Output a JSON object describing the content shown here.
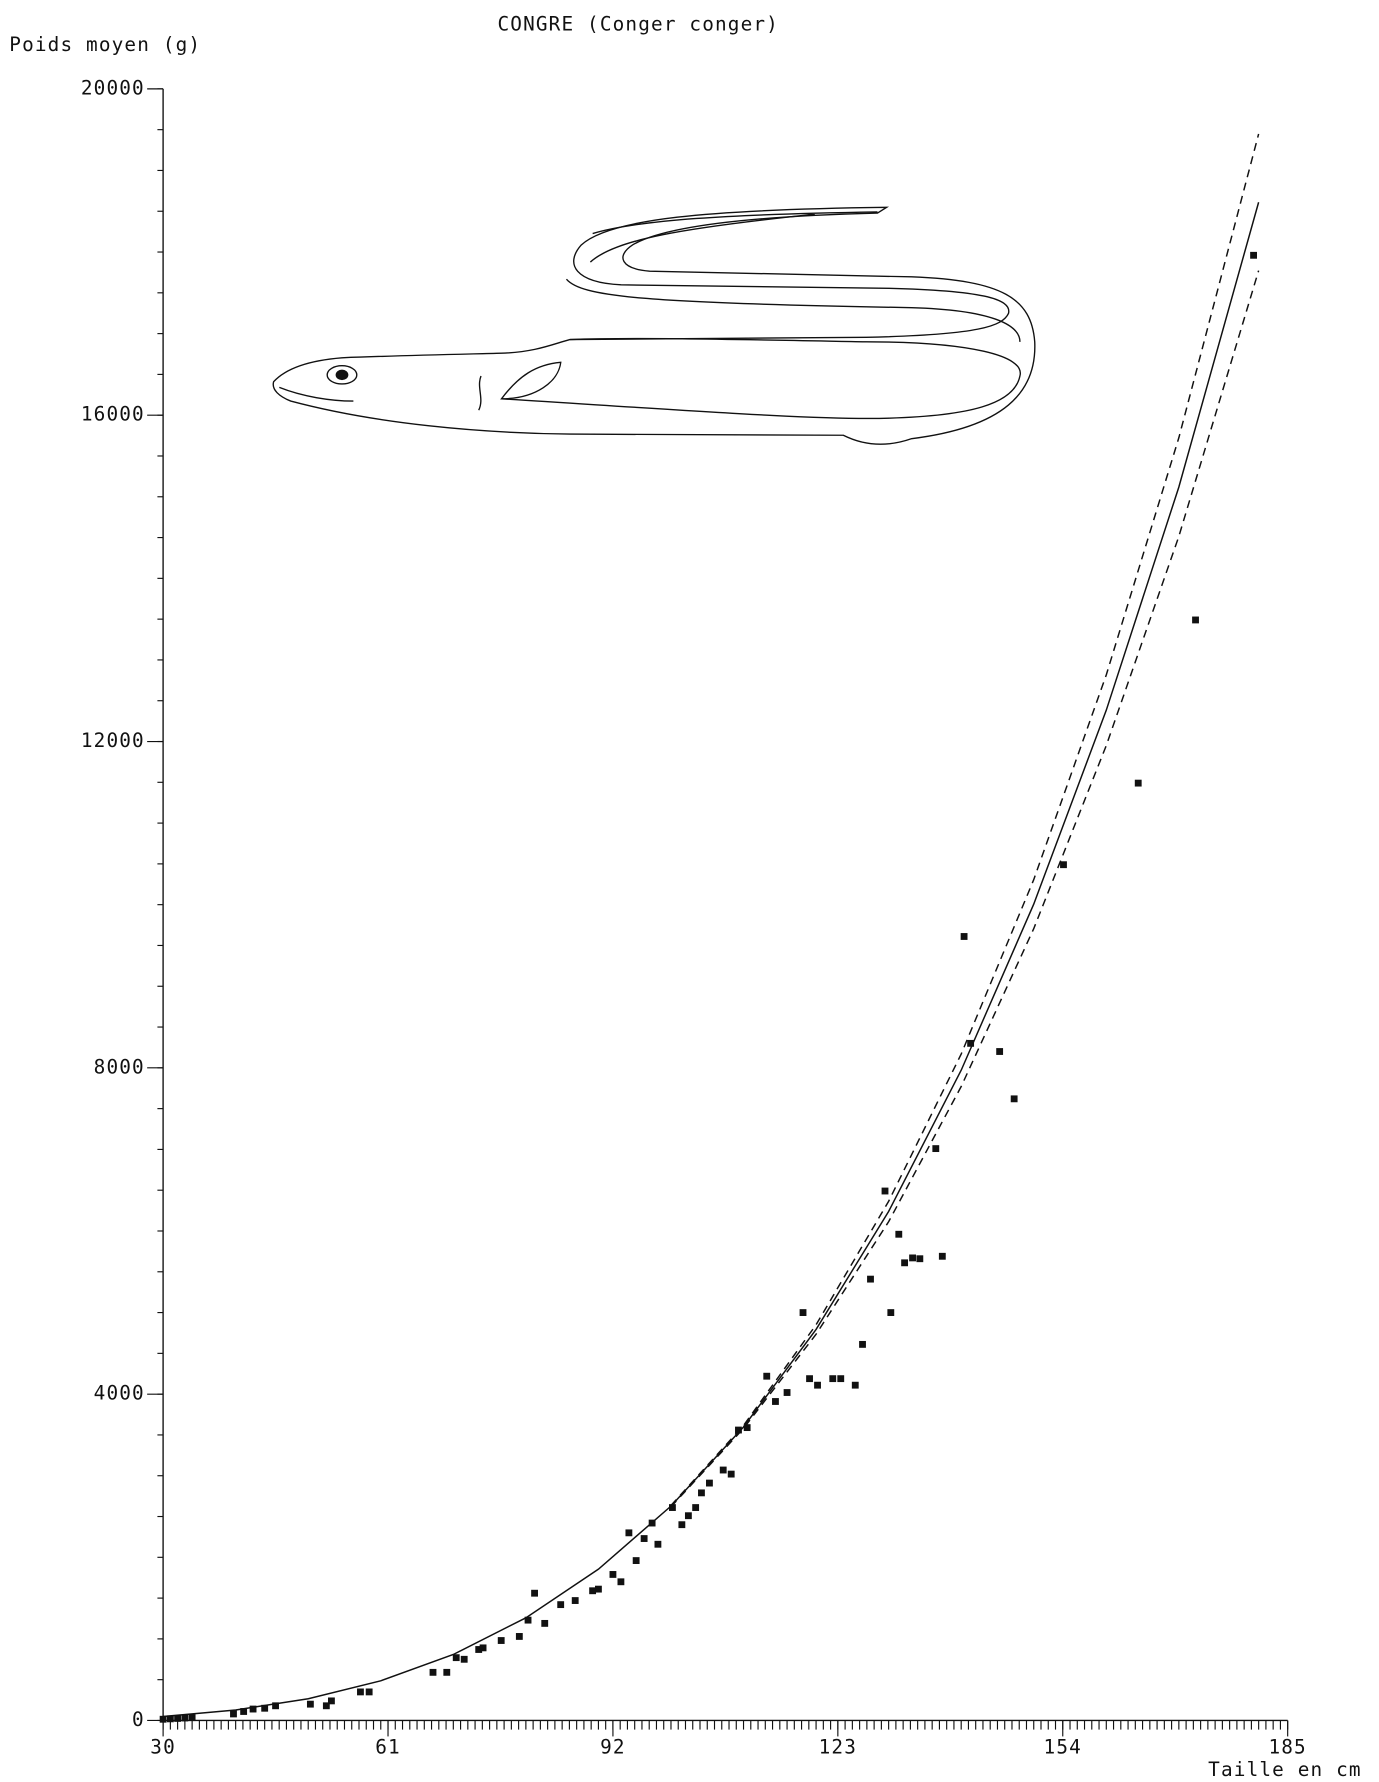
{
  "chart_data": {
    "type": "scatter",
    "title": "CONGRE (Conger conger)",
    "y_label": "Poids moyen (g)",
    "x_label": "Taille en cm",
    "xlim": [
      30,
      185
    ],
    "ylim": [
      0,
      20000
    ],
    "xticks": [
      30,
      61,
      92,
      123,
      154,
      185
    ],
    "yticks": [
      0,
      4000,
      8000,
      12000,
      16000,
      20000
    ],
    "xminorticks": [
      30,
      31,
      32,
      33,
      34,
      35,
      36,
      37,
      38,
      39,
      40,
      41,
      42,
      43,
      44,
      45,
      46,
      47,
      48,
      49,
      50,
      51,
      52,
      53,
      54,
      55,
      56,
      57,
      58,
      59,
      60,
      61,
      62,
      63,
      64,
      65,
      66,
      67,
      68,
      69,
      70,
      71,
      72,
      73,
      74,
      75,
      76,
      77,
      78,
      79,
      80,
      81,
      82,
      83,
      84,
      85,
      86,
      87,
      88,
      89,
      90,
      91,
      92,
      93,
      94,
      95,
      96,
      97,
      98,
      99,
      100,
      101,
      102,
      103,
      104,
      105,
      106,
      107,
      108,
      109,
      110,
      111,
      112,
      113,
      114,
      115,
      116,
      117,
      118,
      119,
      120,
      121,
      122,
      123,
      124,
      125,
      126,
      127,
      128,
      129,
      130,
      131,
      132,
      133,
      134,
      135,
      136,
      137,
      138,
      139,
      140,
      141,
      142,
      143,
      144,
      145,
      146,
      147,
      148,
      149,
      150,
      151,
      152,
      153,
      154,
      155,
      156,
      157,
      158,
      159,
      160,
      161,
      162,
      163,
      164,
      165,
      166,
      167,
      168,
      169,
      170,
      171,
      172,
      173,
      174,
      175,
      176,
      177,
      178,
      179,
      180,
      181,
      182,
      183,
      184,
      185
    ],
    "yminorticks": [
      0,
      500,
      1000,
      1500,
      2000,
      2500,
      3000,
      3500,
      4000,
      4500,
      5000,
      5500,
      6000,
      6500,
      7000,
      7500,
      8000,
      8500,
      9000,
      9500,
      10000,
      10500,
      11000,
      11500,
      12000,
      12500,
      13000,
      13500,
      14000,
      14500,
      15000,
      15500,
      16000,
      16500,
      17000,
      17500,
      18000,
      18500,
      19000,
      19500,
      20000
    ],
    "color": "#111111",
    "series": [
      {
        "kind": "points",
        "x": [
          30,
          31,
          32,
          33,
          34,
          39.7,
          41.1,
          42.4,
          44.0,
          45.5,
          50.3,
          52.5,
          53.2,
          57.2,
          58.4,
          67.2,
          69.1,
          70.4,
          71.5,
          73.5,
          74.1,
          76.6,
          79.1,
          80.3,
          81.2,
          82.6,
          84.8,
          86.8,
          89.2,
          90.0,
          92.0,
          93.1,
          94.2,
          95.2,
          96.3,
          97.4,
          98.2,
          100.2,
          101.5,
          102.4,
          103.4,
          104.2,
          105.3,
          107.2,
          108.3,
          109.3,
          110.5,
          113.2,
          114.4,
          116.0,
          118.2,
          119.1,
          120.2,
          122.3,
          123.4,
          125.4,
          126.4,
          127.5,
          129.5,
          130.3,
          131.4,
          132.2,
          133.3,
          134.3,
          136.5,
          137.4,
          140.4,
          141.3,
          145.3,
          147.3,
          154.1,
          164.4,
          172.3,
          180.3
        ],
        "values": [
          15,
          20,
          25,
          30,
          35,
          80,
          110,
          140,
          150,
          180,
          200,
          180,
          240,
          350,
          350,
          590,
          590,
          770,
          750,
          870,
          890,
          980,
          1030,
          1230,
          1560,
          1190,
          1420,
          1470,
          1590,
          1610,
          1790,
          1700,
          2300,
          1960,
          2230,
          2420,
          2160,
          2610,
          2400,
          2510,
          2610,
          2790,
          2910,
          3070,
          3020,
          3560,
          3590,
          4220,
          3910,
          4020,
          5000,
          4190,
          4110,
          4190,
          4190,
          4110,
          4610,
          5410,
          6490,
          5000,
          5960,
          5610,
          5670,
          5660,
          7010,
          5690,
          9610,
          8300,
          8200,
          7620,
          10490,
          11490,
          13490,
          17960
        ]
      },
      {
        "kind": "solid",
        "x": [
          30,
          40,
          50,
          60,
          70,
          80,
          90,
          100,
          110,
          120,
          130,
          140,
          150,
          160,
          170,
          181
        ],
        "values": [
          49,
          128,
          267,
          486,
          809,
          1258,
          1855,
          2627,
          3598,
          4793,
          6240,
          7972,
          10006,
          12384,
          15120,
          18610
        ]
      },
      {
        "kind": "dashed",
        "x": [
          100,
          110,
          120,
          130,
          140,
          150,
          160,
          170,
          181
        ],
        "values": [
          2635,
          3616,
          4851,
          6365,
          8171,
          10306,
          12817,
          15725,
          19447
        ]
      },
      {
        "kind": "dashed",
        "x": [
          100,
          110,
          120,
          130,
          140,
          150,
          160,
          170,
          181
        ],
        "values": [
          2619,
          3580,
          4735,
          6115,
          7773,
          9706,
          11951,
          14515,
          17773
        ]
      }
    ]
  }
}
